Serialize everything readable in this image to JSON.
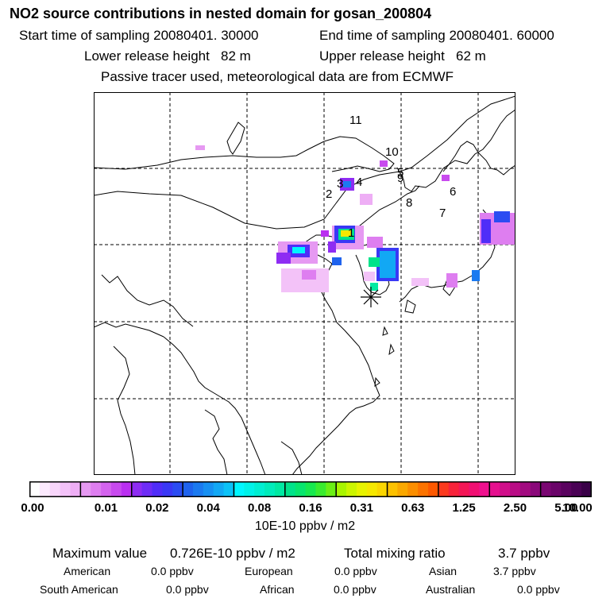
{
  "header": {
    "title": "NO2 source contributions in nested domain for gosan_200804",
    "start_time": "Start time of sampling 20080401. 30000",
    "end_time": "End time of sampling 20080401. 60000",
    "lower_release": "Lower release height   82 m",
    "upper_release": "Upper release height   62 m",
    "tracer_note": "Passive tracer used, meteorological data are from ECMWF"
  },
  "map": {
    "trajectory_labels": [
      "11",
      "10",
      "5",
      "9",
      "6",
      "8",
      "7",
      "1",
      "2",
      "3",
      "4"
    ],
    "receptor_marker": "receptor-star"
  },
  "colorbar": {
    "tick_labels": [
      "0.00",
      "0.01",
      "0.02",
      "0.04",
      "0.08",
      "0.16",
      "0.31",
      "0.63",
      "1.25",
      "2.50",
      "5.00",
      "10.00"
    ],
    "colors": [
      [
        "#ffffff",
        "#fbe9fd",
        "#f8d6fb",
        "#f3c2f8",
        "#eeaef5"
      ],
      [
        "#e699f2",
        "#de7ef0",
        "#d463ee",
        "#c84aee",
        "#ba2ff0"
      ],
      [
        "#8e2cf3",
        "#6e2cf6",
        "#502df8",
        "#3a38f5",
        "#2b4cf2"
      ],
      [
        "#1f63ee",
        "#1b7af0",
        "#1790f2",
        "#12a8f4",
        "#0bc2f7"
      ],
      [
        "#00f6ff",
        "#00f2e8",
        "#00efd2",
        "#00ecbb",
        "#00e9a2"
      ],
      [
        "#00e38a",
        "#07e66e",
        "#17e94f",
        "#3aec2f",
        "#6bef15"
      ],
      [
        "#a8f500",
        "#ccf500",
        "#e8f300",
        "#f6e800",
        "#fbd600"
      ],
      [
        "#fcc100",
        "#faa800",
        "#fb8e00",
        "#fc7300",
        "#fd5800"
      ],
      [
        "#fb3a1e",
        "#f7233a",
        "#f41656",
        "#f10f72",
        "#ef118e"
      ],
      [
        "#e5108e",
        "#d00f8a",
        "#b90d85",
        "#a20b80",
        "#8a087a"
      ],
      [
        "#7a0672",
        "#6a0469",
        "#5a035f",
        "#4a0255",
        "#3a0148"
      ]
    ],
    "units": "10E-10 ppbv / m2"
  },
  "summary": {
    "max_label": "Maximum value",
    "max_value": "0.726E-10 ppbv / m2",
    "total_label": "Total mixing ratio",
    "total_value": "3.7 ppbv",
    "regions": [
      {
        "name": "American",
        "value": "0.0 ppbv"
      },
      {
        "name": "European",
        "value": "0.0 ppbv"
      },
      {
        "name": "Asian",
        "value": "3.7 ppbv"
      },
      {
        "name": "South American",
        "value": "0.0 ppbv"
      },
      {
        "name": "African",
        "value": "0.0 ppbv"
      },
      {
        "name": "Australian",
        "value": "0.0 ppbv"
      }
    ]
  }
}
